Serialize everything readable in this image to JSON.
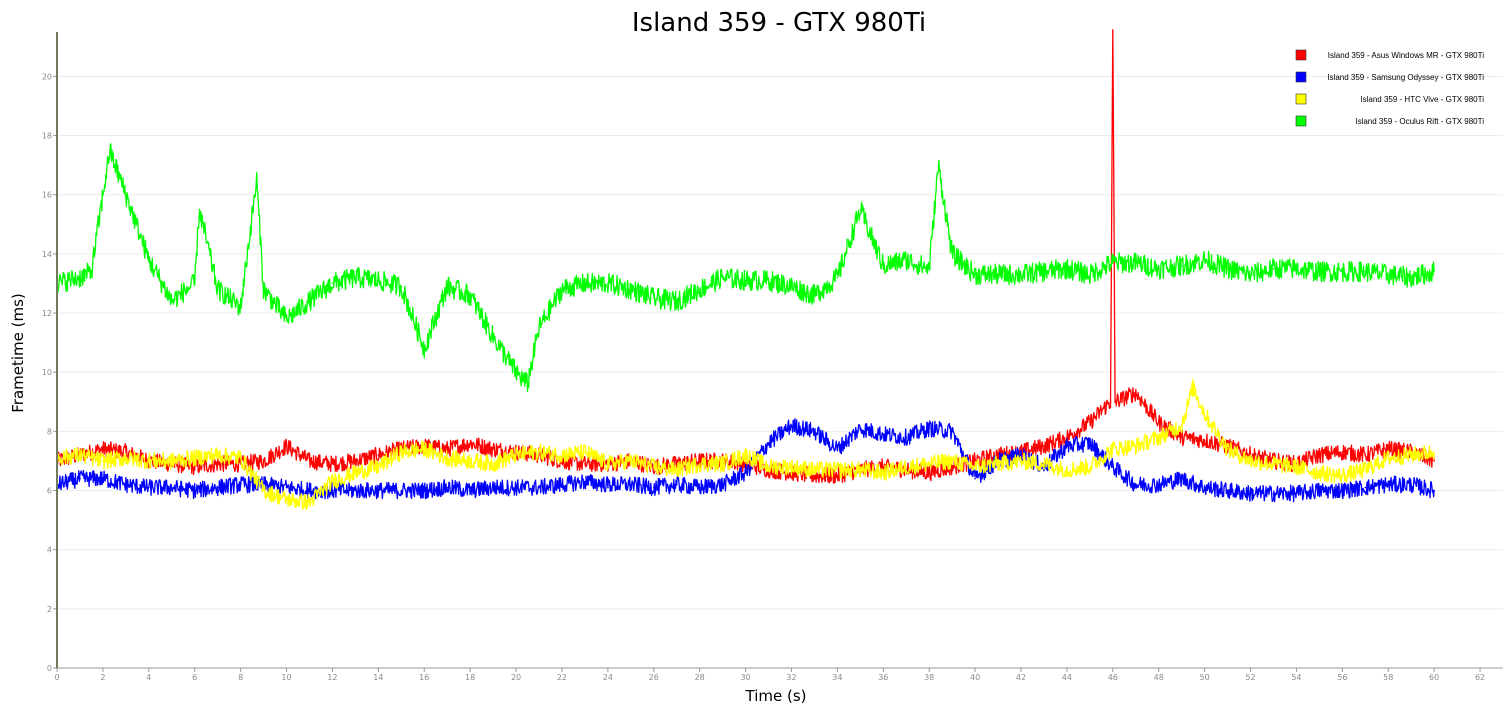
{
  "chart_data": {
    "type": "line",
    "title": "Island 359 - GTX 980Ti",
    "xlabel": "Time (s)",
    "ylabel": "Frametime (ms)",
    "xlim": [
      0,
      63
    ],
    "ylim": [
      0,
      21.5
    ],
    "x_ticks": [
      0,
      2,
      4,
      6,
      8,
      10,
      12,
      14,
      16,
      18,
      20,
      22,
      24,
      26,
      28,
      30,
      32,
      34,
      36,
      38,
      40,
      42,
      44,
      46,
      48,
      50,
      52,
      54,
      56,
      58,
      60,
      62
    ],
    "y_ticks": [
      0,
      2,
      4,
      6,
      8,
      10,
      12,
      14,
      16,
      18,
      20
    ],
    "grid": true,
    "legend_position": "top-right",
    "series": [
      {
        "name": "Island 359 - Asus Windows MR - GTX 980Ti",
        "color": "#ff0000",
        "x": [
          0,
          1,
          2,
          3,
          4,
          5,
          6,
          7,
          8,
          9,
          10,
          11,
          12,
          13,
          14,
          15,
          16,
          17,
          18,
          19,
          20,
          21,
          22,
          23,
          24,
          25,
          26,
          27,
          28,
          29,
          30,
          31,
          32,
          33,
          34,
          35,
          36,
          37,
          38,
          39,
          40,
          41,
          42,
          43,
          44,
          45,
          45.9,
          46,
          46.1,
          47,
          48,
          49,
          50,
          51,
          52,
          53,
          54,
          55,
          56,
          57,
          58,
          59,
          60
        ],
        "y": [
          7.0,
          7.2,
          7.4,
          7.3,
          7.0,
          6.9,
          6.8,
          6.9,
          6.9,
          7.0,
          7.5,
          7.0,
          6.9,
          7.0,
          7.2,
          7.4,
          7.5,
          7.4,
          7.6,
          7.4,
          7.3,
          7.2,
          7.0,
          6.9,
          6.9,
          7.0,
          6.8,
          6.9,
          7.0,
          7.0,
          6.9,
          6.7,
          6.6,
          6.5,
          6.5,
          6.7,
          6.8,
          6.7,
          6.6,
          6.8,
          7.0,
          7.2,
          7.3,
          7.5,
          7.8,
          8.3,
          9.0,
          21.5,
          9.0,
          9.3,
          8.3,
          7.8,
          7.7,
          7.5,
          7.2,
          7.0,
          6.9,
          7.2,
          7.3,
          7.2,
          7.4,
          7.3,
          7.0
        ]
      },
      {
        "name": "Island 359 - Samsung Odyssey - GTX 980Ti",
        "color": "#0000ff",
        "x": [
          0,
          1,
          2,
          3,
          4,
          5,
          6,
          7,
          8,
          9,
          10,
          11,
          12,
          13,
          14,
          15,
          16,
          17,
          18,
          19,
          20,
          21,
          22,
          23,
          24,
          25,
          26,
          27,
          28,
          29,
          30,
          31,
          32,
          33,
          34,
          35,
          36,
          37,
          38,
          39,
          40,
          41,
          42,
          43,
          44,
          45,
          46,
          47,
          48,
          49,
          50,
          51,
          52,
          53,
          54,
          55,
          56,
          57,
          58,
          59,
          60
        ],
        "y": [
          6.2,
          6.4,
          6.4,
          6.2,
          6.1,
          6.1,
          6.0,
          6.1,
          6.2,
          6.2,
          6.1,
          6.0,
          6.0,
          6.0,
          6.0,
          6.0,
          6.0,
          6.1,
          6.0,
          6.1,
          6.1,
          6.1,
          6.2,
          6.3,
          6.2,
          6.2,
          6.1,
          6.2,
          6.1,
          6.2,
          6.6,
          7.6,
          8.2,
          8.0,
          7.4,
          8.1,
          7.9,
          7.8,
          8.1,
          8.0,
          6.4,
          7.0,
          7.2,
          6.8,
          7.5,
          7.6,
          6.8,
          6.2,
          6.2,
          6.4,
          6.1,
          6.0,
          5.9,
          5.9,
          5.9,
          6.0,
          6.0,
          6.1,
          6.2,
          6.2,
          6.0
        ]
      },
      {
        "name": "Island 359 - HTC Vive - GTX 980Ti",
        "color": "#ffff00",
        "x": [
          0,
          1,
          2,
          3,
          4,
          5,
          6,
          7,
          8,
          9,
          10,
          11,
          12,
          13,
          14,
          15,
          16,
          17,
          18,
          19,
          20,
          21,
          22,
          23,
          24,
          25,
          26,
          27,
          28,
          29,
          30,
          31,
          32,
          33,
          34,
          35,
          36,
          37,
          38,
          39,
          40,
          41,
          42,
          43,
          44,
          45,
          46,
          47,
          48,
          49,
          49.5,
          50,
          51,
          52,
          53,
          54,
          55,
          56,
          57,
          58,
          59,
          60
        ],
        "y": [
          7.1,
          7.2,
          7.0,
          7.1,
          7.0,
          7.0,
          7.1,
          7.2,
          7.1,
          6.0,
          5.7,
          5.6,
          6.3,
          6.6,
          6.8,
          7.3,
          7.4,
          7.1,
          7.0,
          6.9,
          7.2,
          7.3,
          7.2,
          7.3,
          6.9,
          7.0,
          6.8,
          6.7,
          6.9,
          6.9,
          7.2,
          6.8,
          6.8,
          6.7,
          6.7,
          6.7,
          6.6,
          6.8,
          6.9,
          7.0,
          6.8,
          6.9,
          7.0,
          6.9,
          6.7,
          6.8,
          7.4,
          7.5,
          7.8,
          8.2,
          9.5,
          8.6,
          7.4,
          7.0,
          6.9,
          6.8,
          6.6,
          6.5,
          6.7,
          7.1,
          7.2,
          7.3
        ]
      },
      {
        "name": "Island 359 - Oculus Rift - GTX 980Ti",
        "color": "#00ff00",
        "x": [
          0,
          1,
          1.5,
          2,
          2.3,
          3,
          4,
          5,
          6,
          6.2,
          7,
          8,
          8.7,
          9,
          10,
          11,
          12,
          13,
          14,
          15,
          16,
          17,
          18,
          19,
          20,
          20.5,
          21,
          22,
          23,
          24,
          25,
          26,
          27,
          28,
          29,
          30,
          31,
          32,
          33,
          34,
          35,
          36,
          37,
          38,
          38.4,
          39,
          40,
          41,
          42,
          43,
          44,
          45,
          46,
          47,
          48,
          49,
          50,
          51,
          52,
          53,
          54,
          55,
          56,
          57,
          58,
          59,
          60
        ],
        "y": [
          13.0,
          13.2,
          13.4,
          16.0,
          17.5,
          16.0,
          13.8,
          12.4,
          13.0,
          15.5,
          12.8,
          12.2,
          16.5,
          12.8,
          11.8,
          12.4,
          13.0,
          13.2,
          13.1,
          12.9,
          10.8,
          12.9,
          12.6,
          11.2,
          10.0,
          9.6,
          11.5,
          12.8,
          13.0,
          13.0,
          12.8,
          12.5,
          12.4,
          12.8,
          13.2,
          13.1,
          13.1,
          12.9,
          12.6,
          13.2,
          15.5,
          13.6,
          13.8,
          13.5,
          17.0,
          14.0,
          13.3,
          13.3,
          13.3,
          13.4,
          13.5,
          13.3,
          13.7,
          13.7,
          13.5,
          13.6,
          13.8,
          13.5,
          13.3,
          13.5,
          13.5,
          13.4,
          13.4,
          13.4,
          13.3,
          13.2,
          13.4
        ]
      }
    ]
  }
}
